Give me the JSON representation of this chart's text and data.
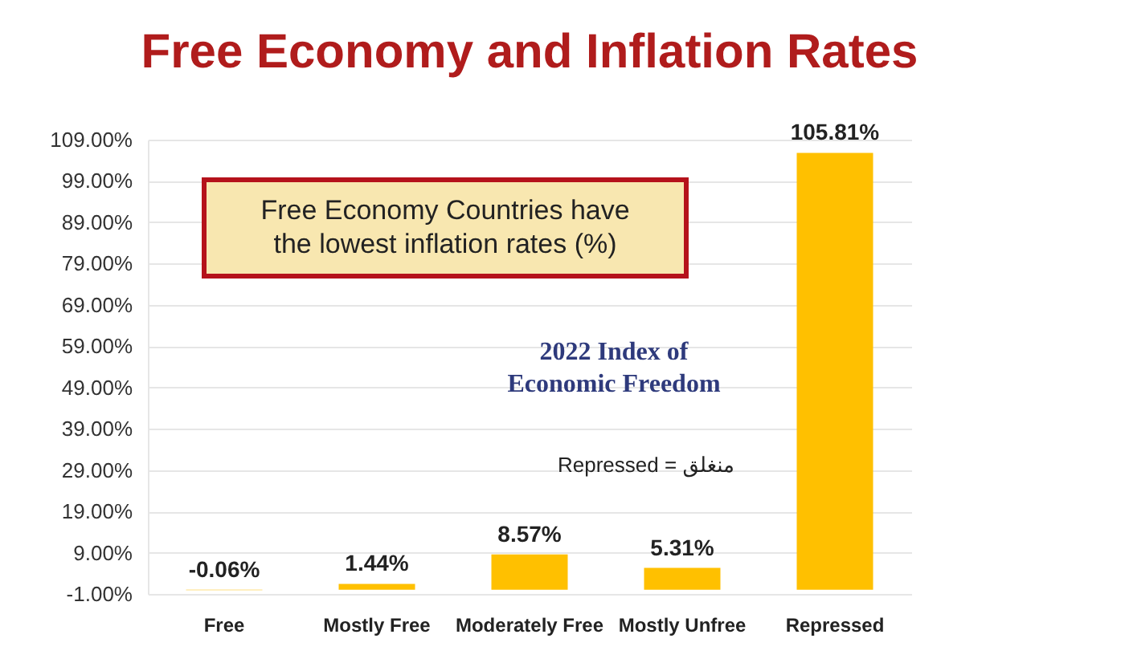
{
  "chart_data": {
    "type": "bar",
    "title": "Free Economy and Inflation Rates",
    "categories": [
      "Free",
      "Mostly Free",
      "Moderately Free",
      "Mostly Unfree",
      "Repressed"
    ],
    "values": [
      -0.06,
      1.44,
      8.57,
      5.31,
      105.81
    ],
    "value_labels": [
      "-0.06%",
      "1.44%",
      "8.57%",
      "5.31%",
      "105.81%"
    ],
    "color": "#ffc000",
    "ylim": [
      -1,
      109
    ],
    "yticks": [
      {
        "value": -1,
        "label": "-1.00%"
      },
      {
        "value": 9,
        "label": "9.00%"
      },
      {
        "value": 19,
        "label": "19.00%"
      },
      {
        "value": 29,
        "label": "29.00%"
      },
      {
        "value": 39,
        "label": "39.00%"
      },
      {
        "value": 49,
        "label": "49.00%"
      },
      {
        "value": 59,
        "label": "59.00%"
      },
      {
        "value": 69,
        "label": "69.00%"
      },
      {
        "value": 79,
        "label": "79.00%"
      },
      {
        "value": 89,
        "label": "89.00%"
      },
      {
        "value": 99,
        "label": "99.00%"
      },
      {
        "value": 109,
        "label": "109.00%"
      }
    ],
    "grid": "y",
    "annotations": [
      "Free Economy Countries have\nthe lowest inflation rates (%)",
      "2022 Index of\nEconomic Freedom",
      "Repressed = منغلق"
    ]
  }
}
